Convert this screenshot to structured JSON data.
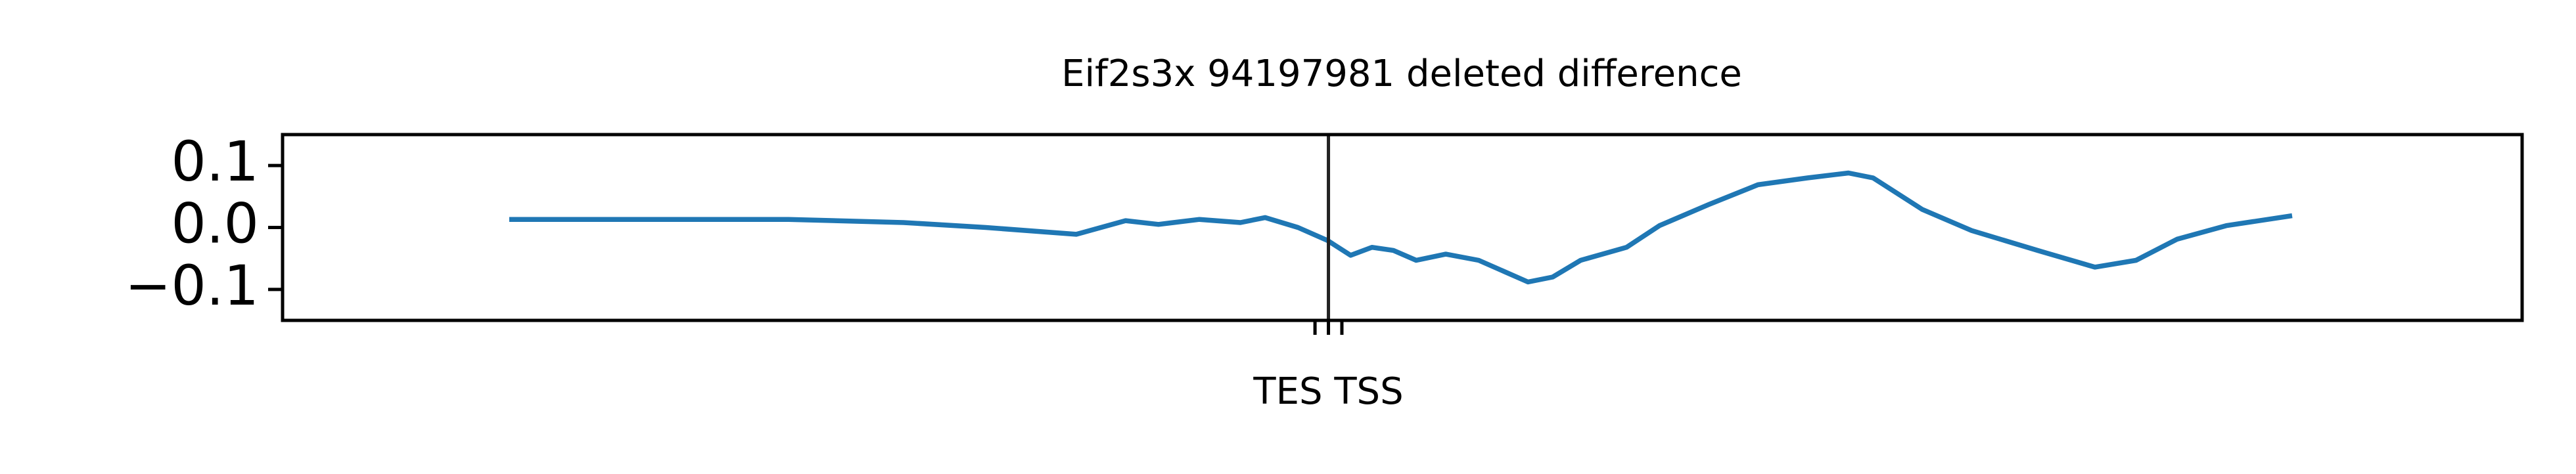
{
  "chart_data": {
    "type": "line",
    "title": "Eif2s3x 94197981 deleted difference",
    "x": [
      10.12,
      22.6,
      27.73,
      31.4,
      35.44,
      37.64,
      39.11,
      40.94,
      42.77,
      43.87,
      45.34,
      46.66,
      47.69,
      48.64,
      49.6,
      50.62,
      51.94,
      53.41,
      55.61,
      56.71,
      57.96,
      60.01,
      61.48,
      63.68,
      65.88,
      68.09,
      69.92,
      71.02,
      73.22,
      75.42,
      78.36,
      80.92,
      82.76,
      84.59,
      86.79,
      89.73
    ],
    "series": [
      {
        "color": "#1f77b4",
        "values": [
          0.013,
          0.013,
          0.008,
          0.0,
          -0.011,
          0.011,
          0.005,
          0.013,
          0.008,
          0.016,
          0.0,
          -0.021,
          -0.045,
          -0.032,
          -0.037,
          -0.053,
          -0.043,
          -0.053,
          -0.088,
          -0.08,
          -0.053,
          -0.032,
          0.003,
          0.037,
          0.069,
          0.08,
          0.088,
          0.08,
          0.029,
          -0.005,
          -0.037,
          -0.064,
          -0.053,
          -0.019,
          0.003,
          0.019
        ]
      }
    ],
    "xlim": [
      0,
      100
    ],
    "xticks": [
      {
        "value": 46.1,
        "label": null
      },
      {
        "value": 46.7,
        "label": "TES TSS"
      },
      {
        "value": 47.3,
        "label": null
      }
    ],
    "ylim": [
      -0.15,
      0.15
    ],
    "yticks": [
      {
        "value": -0.1,
        "label": "−0.1"
      },
      {
        "value": 0,
        "label": "0.0"
      },
      {
        "value": 0.1,
        "label": "0.1"
      }
    ],
    "vline": 46.7,
    "vline_color": "#222222",
    "grid": false
  }
}
